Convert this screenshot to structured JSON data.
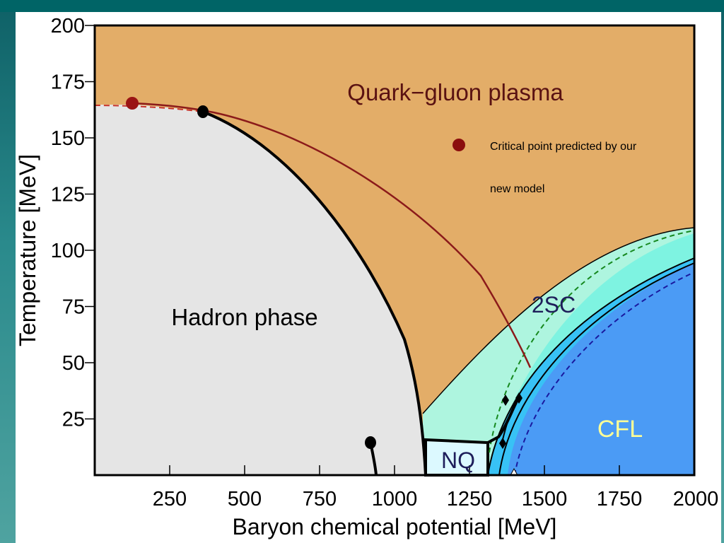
{
  "chart_data": {
    "type": "area",
    "xlabel": "Baryon chemical potential [MeV]",
    "ylabel": "Temperature [MeV]",
    "xlim": [
      0,
      2000
    ],
    "ylim": [
      0,
      200
    ],
    "x_ticks": [
      250,
      500,
      750,
      1000,
      1250,
      1500,
      1750,
      2000
    ],
    "y_ticks": [
      25,
      50,
      75,
      100,
      125,
      150,
      175,
      200
    ],
    "regions": [
      {
        "label": "Quark−gluon plasma",
        "color": "#e3ad68"
      },
      {
        "label": "Hadron phase",
        "color": "#e5e5e5"
      },
      {
        "label": "2SC",
        "color": "#a5f4dc"
      },
      {
        "label": "CFL",
        "color": "#4b9bf5"
      },
      {
        "label": "NQ",
        "color": "#dcf9ff"
      }
    ],
    "phase_boundary_hadron": [
      [
        0,
        164
      ],
      [
        200,
        163
      ],
      [
        365,
        161
      ],
      [
        500,
        150
      ],
      [
        700,
        122
      ],
      [
        850,
        90
      ],
      [
        950,
        60
      ],
      [
        1040,
        30
      ],
      [
        1080,
        15
      ],
      [
        1105,
        0
      ]
    ],
    "critical_point_standard": {
      "x": 365,
      "y": 161
    },
    "critical_point_new_model": {
      "x": 125,
      "y": 165
    },
    "new_model_transition_line": [
      [
        125,
        165
      ],
      [
        365,
        161
      ],
      [
        600,
        143
      ],
      [
        850,
        120
      ],
      [
        1100,
        96
      ],
      [
        1300,
        72
      ],
      [
        1460,
        48
      ]
    ],
    "endpoint_low": {
      "x": 920,
      "y": 14
    },
    "legend": {
      "label": "Critical point predicted by our new model",
      "line1": "Critical point predicted by our",
      "line2": "new model",
      "marker_color": "#8b0e0e"
    },
    "colors": {
      "qgp": "#e3ad68",
      "hadron": "#e5e5e5",
      "twosc_light": "#aef5df",
      "twosc": "#7ef3e1",
      "cfl": "#4b9bf5",
      "gapless": "#38c2f5",
      "nq": "#dcf9ff",
      "transition": "#8b1a1a",
      "text_dark": "#1e1e5a",
      "text_qgp": "#5a1212",
      "text_cfl": "#ffff96"
    }
  }
}
